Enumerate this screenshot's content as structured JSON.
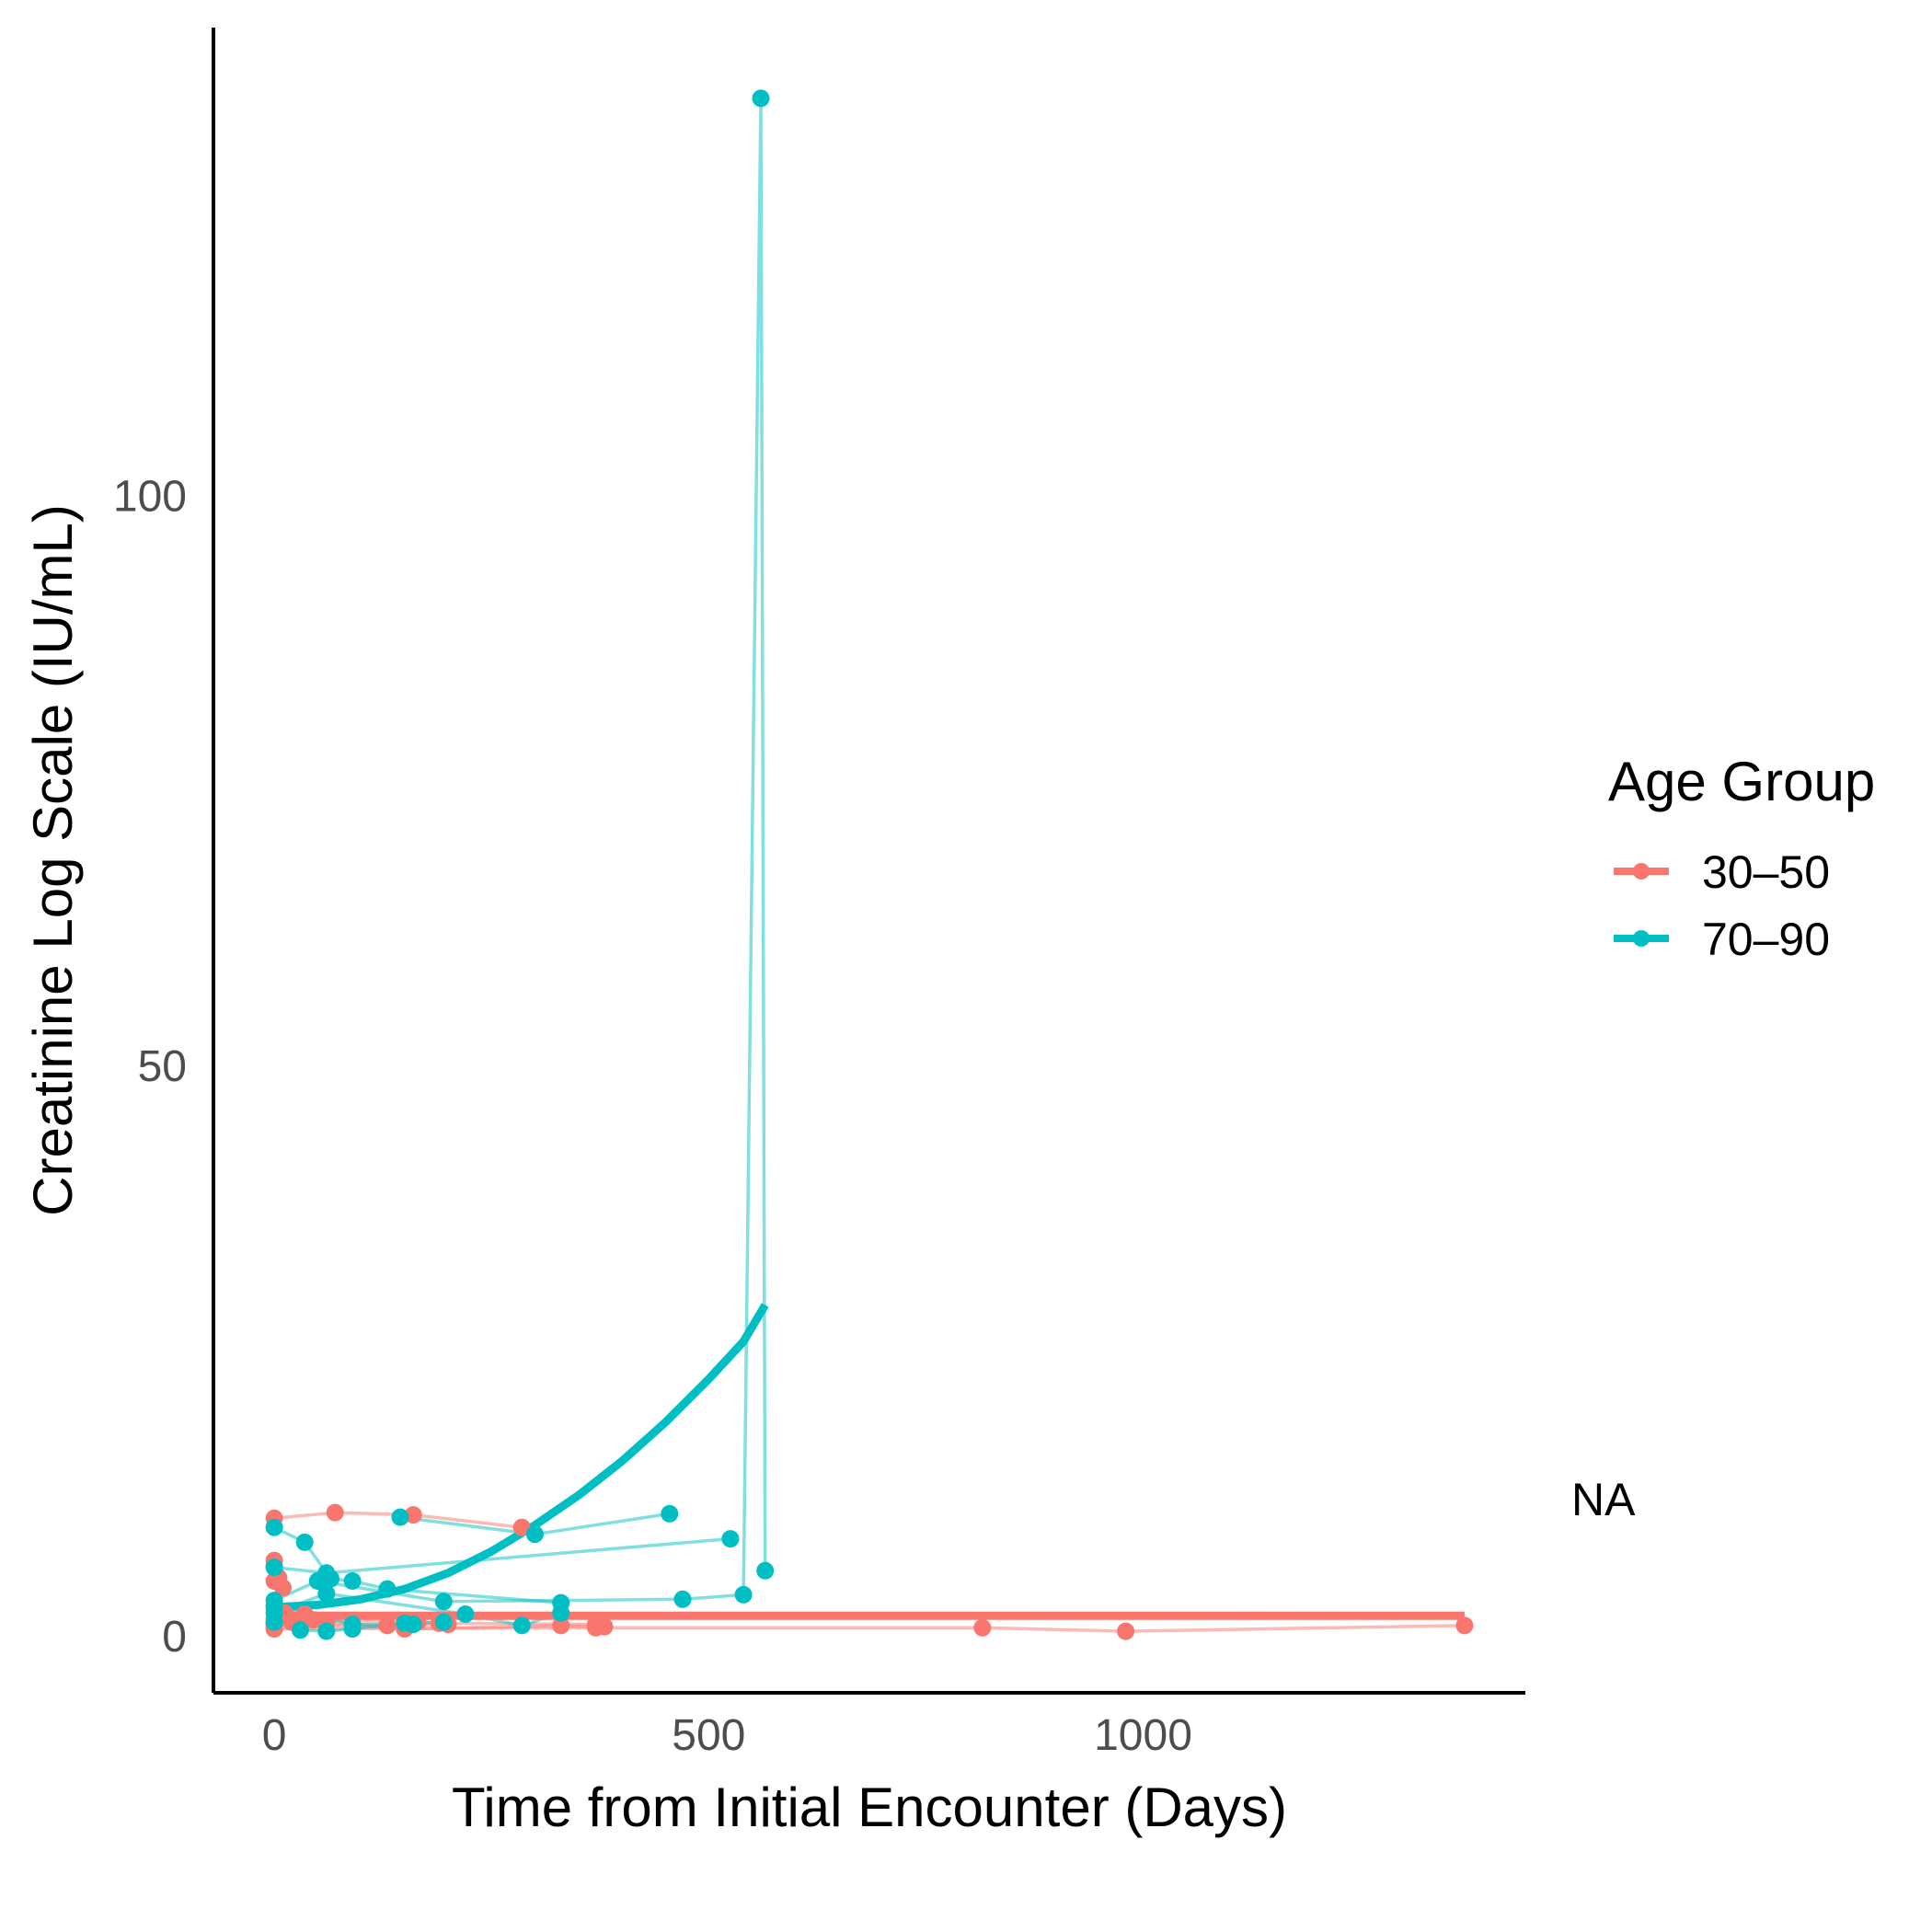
{
  "chart_data": {
    "type": "line",
    "xlabel": "Time from Initial Encounter (Days)",
    "ylabel": "Creatinine Log Scale (IU/mL)",
    "xlim": [
      -70,
      1440
    ],
    "ylim": [
      -5,
      141
    ],
    "xticks": [
      0,
      500,
      1000
    ],
    "xtick_labels": [
      "0",
      "500",
      "1000"
    ],
    "yticks": [
      0,
      50,
      100
    ],
    "ytick_labels": [
      "0",
      "50",
      "100"
    ],
    "grid": false,
    "legend": {
      "title": "Age Group",
      "position": "right",
      "entries": [
        "30–50",
        "70–90"
      ]
    },
    "side_label": "NA",
    "series": [
      {
        "name": "30–50",
        "color": "#F8766D",
        "trajectories": [
          [
            [
              0,
              10.3
            ],
            [
              70,
              10.8
            ],
            [
              160,
              10.6
            ],
            [
              285,
              9.5
            ]
          ],
          [
            [
              0,
              6.6
            ],
            [
              0,
              6.1
            ],
            [
              5,
              5.1
            ]
          ],
          [
            [
              0,
              4.8
            ],
            [
              10,
              4.2
            ]
          ],
          [
            [
              0,
              1.0
            ],
            [
              20,
              1.2
            ],
            [
              60,
              1.1
            ],
            [
              130,
              0.9
            ],
            [
              200,
              1.0
            ]
          ],
          [
            [
              0,
              0.8
            ],
            [
              90,
              0.9
            ],
            [
              150,
              0.6
            ],
            [
              330,
              0.9
            ],
            [
              380,
              0.8
            ]
          ],
          [
            [
              0,
              0.6
            ],
            [
              370,
              0.7
            ],
            [
              815,
              0.7
            ],
            [
              980,
              0.4
            ],
            [
              1370,
              0.9
            ]
          ],
          [
            [
              0,
              1.5
            ],
            [
              45,
              1.4
            ],
            [
              165,
              1.2
            ],
            [
              190,
              1.1
            ],
            [
              370,
              1.0
            ]
          ],
          [
            [
              0,
              2.4
            ],
            [
              12,
              2.0
            ],
            [
              35,
              1.9
            ]
          ]
        ],
        "trend": [
          [
            0,
            1.75
          ],
          [
            1370,
            1.75
          ]
        ]
      },
      {
        "name": "70–90",
        "color": "#00BFC4",
        "trajectories": [
          [
            [
              0,
              9.5
            ],
            [
              35,
              8.2
            ],
            [
              65,
              5.0
            ],
            [
              90,
              4.8
            ],
            [
              130,
              4.1
            ],
            [
              330,
              2.9
            ]
          ],
          [
            [
              145,
              10.4
            ],
            [
              300,
              8.9
            ],
            [
              455,
              10.7
            ]
          ],
          [
            [
              0,
              6.0
            ],
            [
              60,
              5.5
            ],
            [
              525,
              8.5
            ]
          ],
          [
            [
              0,
              3.1
            ],
            [
              50,
              4.8
            ],
            [
              195,
              3.0
            ],
            [
              470,
              3.2
            ],
            [
              540,
              3.6
            ],
            [
              560,
              134.8
            ],
            [
              565,
              5.7
            ]
          ],
          [
            [
              0,
              2.0
            ],
            [
              60,
              3.7
            ],
            [
              220,
              1.9
            ],
            [
              285,
              0.9
            ],
            [
              330,
              2.0
            ]
          ],
          [
            [
              0,
              1.2
            ],
            [
              30,
              0.5
            ],
            [
              60,
              0.4
            ],
            [
              90,
              0.6
            ],
            [
              150,
              1.1
            ],
            [
              195,
              1.2
            ]
          ],
          [
            [
              0,
              2.6
            ],
            [
              90,
              1.0
            ],
            [
              160,
              1.0
            ]
          ]
        ],
        "trend": [
          [
            0,
            2.5
          ],
          [
            50,
            2.7
          ],
          [
            100,
            3.2
          ],
          [
            150,
            4.1
          ],
          [
            200,
            5.5
          ],
          [
            250,
            7.4
          ],
          [
            300,
            9.7
          ],
          [
            350,
            12.3
          ],
          [
            400,
            15.3
          ],
          [
            450,
            18.7
          ],
          [
            500,
            22.5
          ],
          [
            540,
            25.8
          ],
          [
            565,
            29.0
          ]
        ]
      }
    ]
  }
}
